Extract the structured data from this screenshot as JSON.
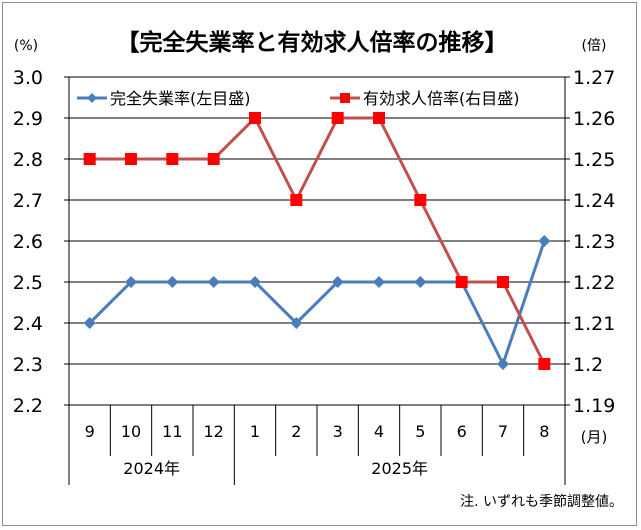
{
  "chart_data": {
    "type": "line",
    "title": "【完全失業率と有効求人倍率の推移】",
    "left_unit": "(%)",
    "right_unit": "(倍)",
    "x_unit": "(月)",
    "note": "注. いずれも季節調整値。",
    "categories": [
      "9",
      "10",
      "11",
      "12",
      "1",
      "2",
      "3",
      "4",
      "5",
      "6",
      "7",
      "8"
    ],
    "year_groups": [
      {
        "label": "2024年",
        "months": [
          "9",
          "10",
          "11",
          "12"
        ]
      },
      {
        "label": "2025年",
        "months": [
          "1",
          "2",
          "3",
          "4",
          "5",
          "6",
          "7",
          "8"
        ]
      }
    ],
    "y_left": {
      "min": 2.2,
      "max": 3.0,
      "step": 0.1,
      "ticks": [
        "2.2",
        "2.3",
        "2.4",
        "2.5",
        "2.6",
        "2.7",
        "2.8",
        "2.9",
        "3.0"
      ]
    },
    "y_right": {
      "min": 1.19,
      "max": 1.27,
      "step": 0.01,
      "ticks": [
        "1.19",
        "1.2",
        "1.21",
        "1.22",
        "1.23",
        "1.24",
        "1.25",
        "1.26",
        "1.27"
      ]
    },
    "grid": true,
    "legend_placement": "top",
    "series": [
      {
        "name": "完全失業率(左目盛)",
        "axis": "left",
        "color": "#4a7ebb",
        "marker": "diamond",
        "values": [
          2.4,
          2.5,
          2.5,
          2.5,
          2.5,
          2.4,
          2.5,
          2.5,
          2.5,
          2.5,
          2.3,
          2.6
        ]
      },
      {
        "name": "有効求人倍率(右目盛)",
        "axis": "right",
        "color": "#c0504d",
        "marker_color": "#ff0000",
        "marker": "square",
        "values": [
          1.25,
          1.25,
          1.25,
          1.25,
          1.26,
          1.24,
          1.26,
          1.26,
          1.24,
          1.22,
          1.22,
          1.2
        ]
      }
    ]
  }
}
